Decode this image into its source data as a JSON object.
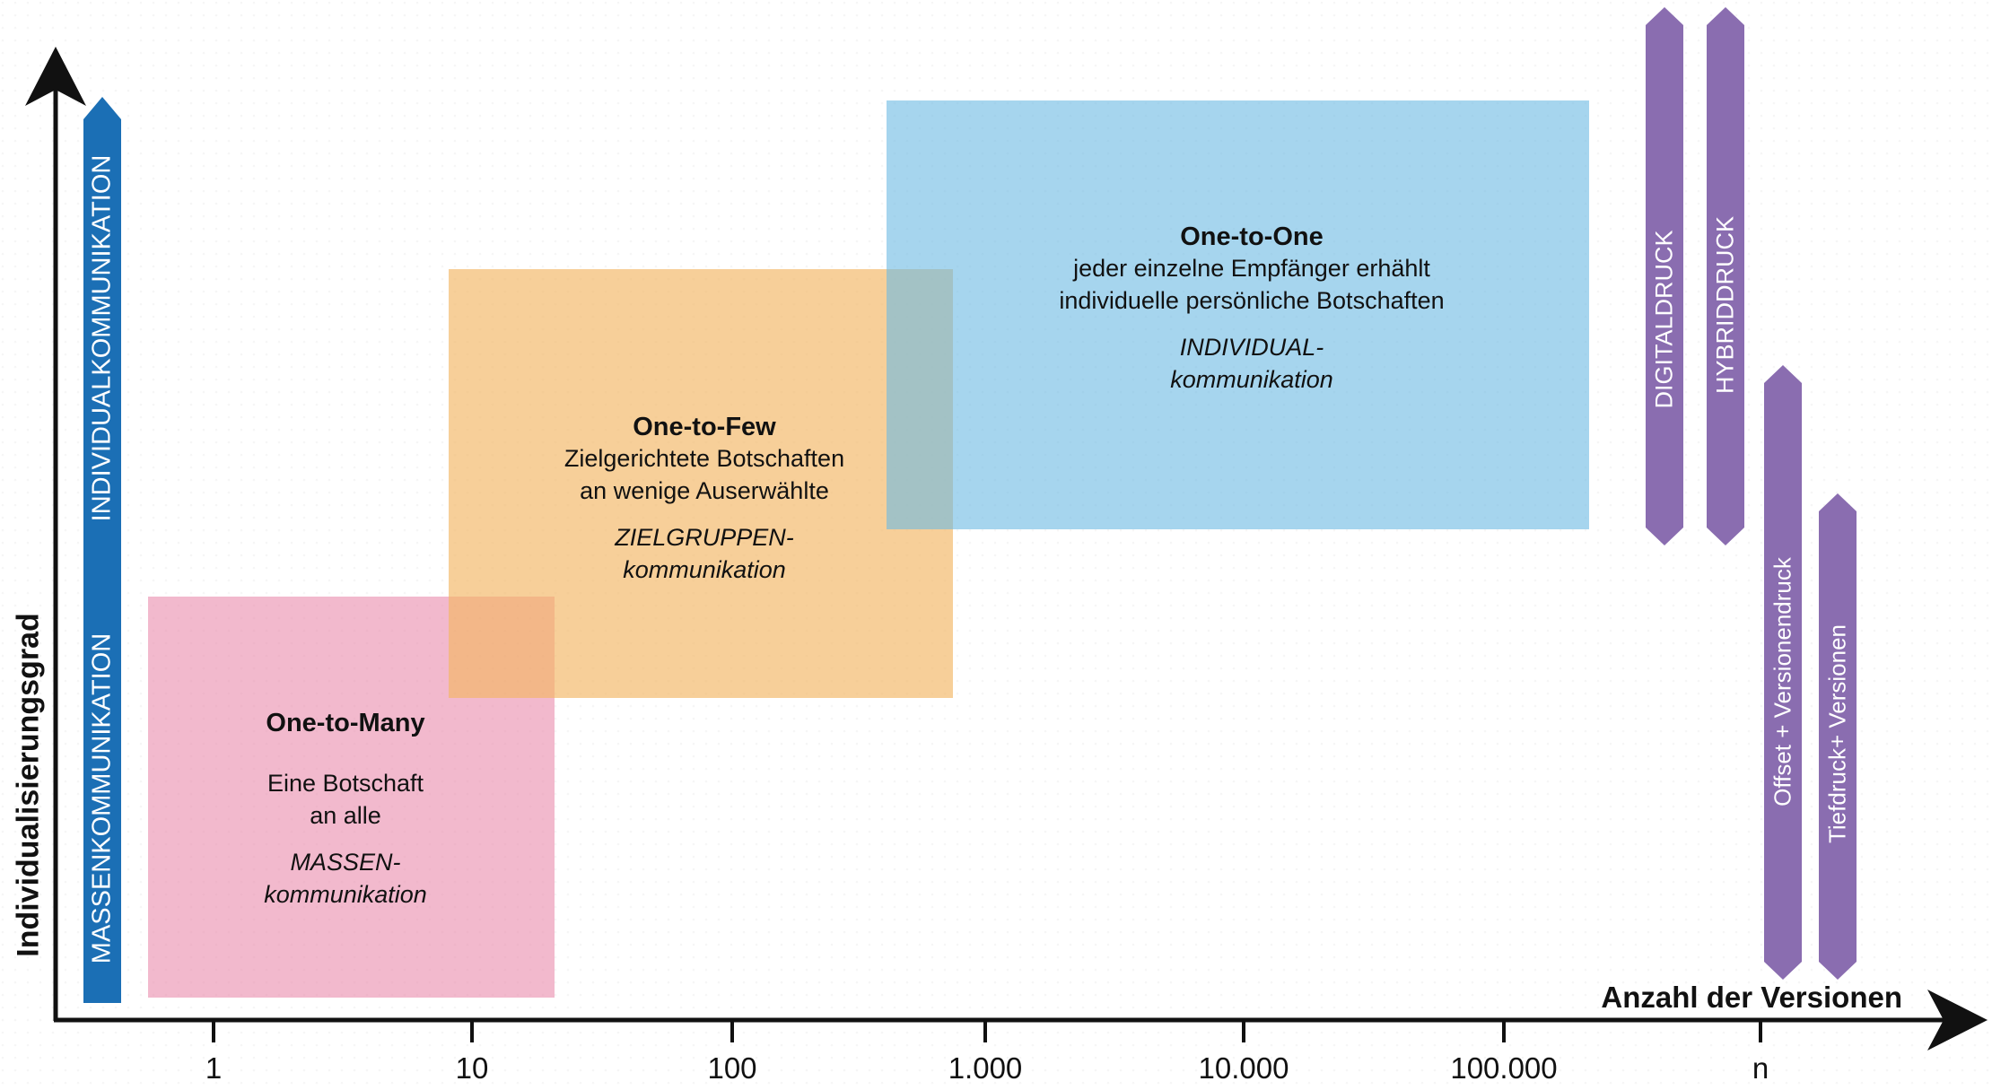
{
  "axes": {
    "y_label": "Individualisierungsgrad",
    "x_label": "Anzahl der Versionen",
    "x_ticks": [
      "1",
      "10",
      "100",
      "1.000",
      "10.000",
      "100.000",
      "n"
    ]
  },
  "y_bar": {
    "top_label": "INDIVIDUALKOMMUNIKATION",
    "bottom_label": "MASSENKOMMUNIKATION",
    "color": "#1b6fb5"
  },
  "boxes": [
    {
      "title": "One-to-Many",
      "line1": "Eine Botschaft",
      "line2": "an alle",
      "ital1": "MASSEN-",
      "ital2": "kommunikation",
      "color": "#e98bab"
    },
    {
      "title": "One-to-Few",
      "line1": "Zielgerichtete Botschaften",
      "line2": "an wenige Auserwählte",
      "ital1": "ZIELGRUPPEN-",
      "ital2": "kommunikation",
      "color": "#f2b662"
    },
    {
      "title": "One-to-One",
      "line1": "jeder einzelne Empfänger erhählt",
      "line2": "individuelle persönliche Botschaften",
      "ital1": "INDIVIDUAL-",
      "ital2": "kommunikation",
      "color": "#6bb9e3"
    }
  ],
  "print_bars": [
    {
      "label": "DIGITALDRUCK"
    },
    {
      "label": "HYBRIDDRUCK"
    },
    {
      "label": "Offset + Versionendruck"
    },
    {
      "label": "Tiefdruck+ Versionen"
    }
  ],
  "colors": {
    "print_bar": "#8a6db0",
    "axis": "#111111"
  }
}
